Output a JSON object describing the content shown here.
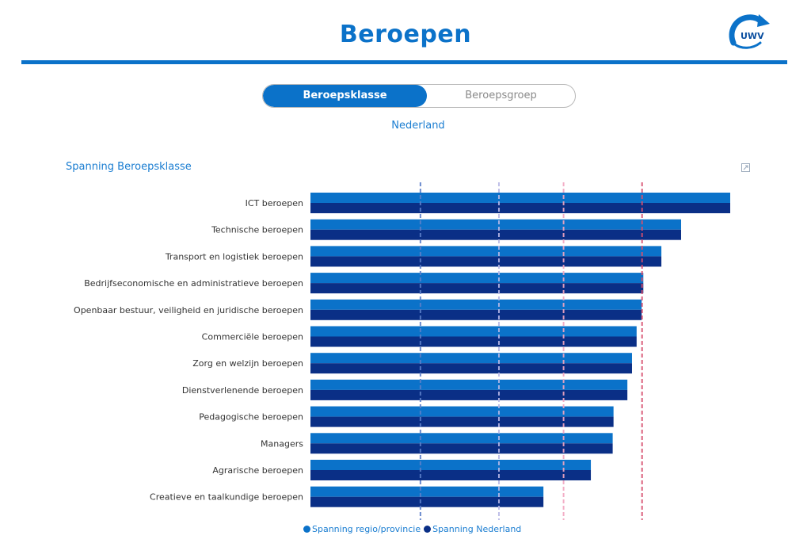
{
  "header": {
    "title": "Beroepen",
    "logo_text": "UWV"
  },
  "toggle": {
    "options": [
      "Beroepsklasse",
      "Beroepsgroep"
    ],
    "active_index": 0
  },
  "region_label": "Nederland",
  "chart_title": "Spanning Beroepsklasse",
  "colors": {
    "accent": "#0b72c9",
    "series_regio": "#0b72c9",
    "series_nederland": "#0a2f86"
  },
  "chart_data": {
    "type": "bar",
    "orientation": "horizontal",
    "categories": [
      "ICT beroepen",
      "Technische beroepen",
      "Transport en logistiek beroepen",
      "Bedrijfseconomische en administratieve beroepen",
      "Openbaar bestuur, veiligheid en juridische beroepen",
      "Commerciële beroepen",
      "Zorg en welzijn beroepen",
      "Dienstverlenende beroepen",
      "Pedagogische beroepen",
      "Managers",
      "Agrarische beroepen",
      "Creatieve en taalkundige beroepen"
    ],
    "series": [
      {
        "name": "Spanning regio/provincie",
        "color": "#0b72c9",
        "values": [
          1.0,
          0.883,
          0.836,
          0.793,
          0.789,
          0.777,
          0.766,
          0.755,
          0.722,
          0.72,
          0.668,
          0.555
        ]
      },
      {
        "name": "Spanning Nederland",
        "color": "#0a2f86",
        "values": [
          1.0,
          0.883,
          0.836,
          0.793,
          0.789,
          0.777,
          0.766,
          0.755,
          0.722,
          0.72,
          0.668,
          0.555
        ]
      }
    ],
    "xlim": [
      0,
      1.0
    ],
    "reference_lines": [
      {
        "value": 0.262,
        "color": "#5b7fc9"
      },
      {
        "value": 0.449,
        "color": "#b7b8e6"
      },
      {
        "value": 0.603,
        "color": "#f2a6c0"
      },
      {
        "value": 0.79,
        "color": "#d9506e"
      }
    ],
    "grid": false,
    "legend_position": "bottom-center"
  }
}
